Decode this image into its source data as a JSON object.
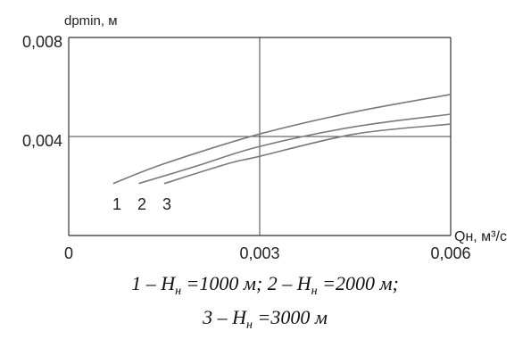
{
  "chart_data": {
    "type": "line",
    "ylabel": "dpmin, м",
    "xlabel": "Qн, м³/с",
    "xlim": [
      0,
      0.006
    ],
    "ylim": [
      0,
      0.008
    ],
    "x_ticks": [
      "0",
      "0,003",
      "0,006"
    ],
    "y_ticks": [
      "0,004",
      "0,008"
    ],
    "grid": true,
    "series": [
      {
        "name": "1",
        "x": [
          0.0007,
          0.0015,
          0.003,
          0.0045,
          0.006
        ],
        "y": [
          0.0021,
          0.0029,
          0.0041,
          0.005,
          0.0057
        ]
      },
      {
        "name": "2",
        "x": [
          0.0011,
          0.002,
          0.003,
          0.0045,
          0.006
        ],
        "y": [
          0.0021,
          0.0028,
          0.0036,
          0.0044,
          0.0049
        ]
      },
      {
        "name": "3",
        "x": [
          0.0015,
          0.0025,
          0.003,
          0.0045,
          0.006
        ],
        "y": [
          0.0021,
          0.0029,
          0.0032,
          0.0041,
          0.0045
        ]
      }
    ],
    "series_labels": [
      "1",
      "2",
      "3"
    ]
  },
  "caption": {
    "line1": {
      "p1": "1 – ",
      "p2": " =1000 м; 2 – ",
      "p3": " =2000 м;"
    },
    "line2": {
      "p1": "3 – ",
      "p2": " =3000 м"
    },
    "symbol": {
      "base": "H",
      "sub": "н"
    }
  },
  "colors": {
    "line": "#7a7a7a",
    "axis": "#333333"
  }
}
